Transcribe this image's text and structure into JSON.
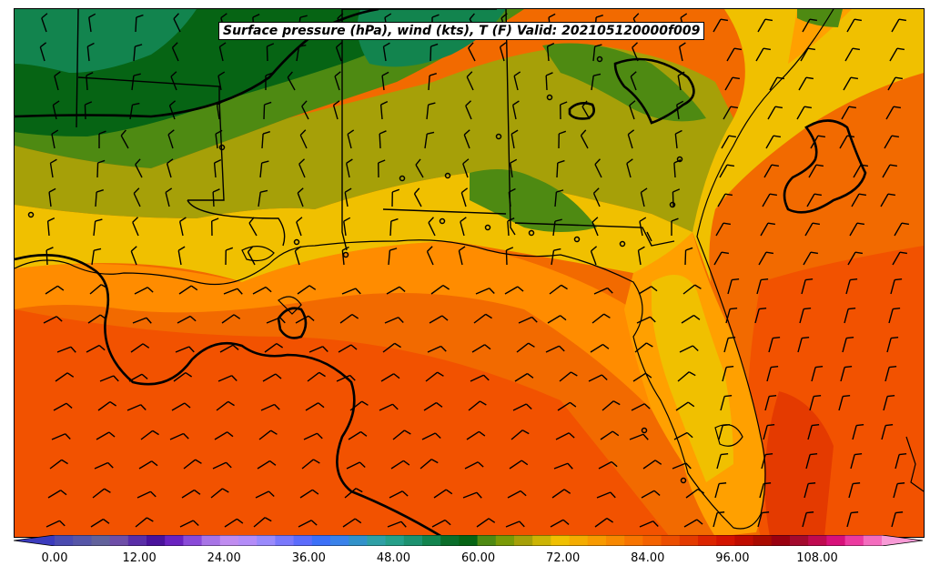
{
  "title": "Surface pressure (hPa), wind (kts), T (F) Valid: 202105120000f009",
  "colorbar": {
    "tick_labels": [
      "0.00",
      "12.00",
      "24.00",
      "36.00",
      "48.00",
      "60.00",
      "72.00",
      "84.00",
      "96.00",
      "108.00"
    ],
    "min": -6,
    "max": 123,
    "step": 3,
    "colors": [
      "#3b3bbd",
      "#4b4bb0",
      "#5656a8",
      "#62629c",
      "#6e4ea8",
      "#5a2ea8",
      "#4a129c",
      "#6a22c0",
      "#8a4ad8",
      "#a874e6",
      "#c08cf0",
      "#b48cf8",
      "#9a8afc",
      "#7a78fc",
      "#5c6cfc",
      "#3c70f8",
      "#3a82ea",
      "#3292ca",
      "#2fa0a6",
      "#26a08a",
      "#1d9270",
      "#12844e",
      "#0a6e2a",
      "#066414",
      "#4e8a12",
      "#7a9a06",
      "#a6a008",
      "#ccb404",
      "#f0c000",
      "#f4ac00",
      "#f89a00",
      "#f88800",
      "#f87400",
      "#f46200",
      "#ec4e00",
      "#e43a00",
      "#dc2400",
      "#d41400",
      "#c00c00",
      "#aa0a00",
      "#9a0010",
      "#a40a2e",
      "#c00a50",
      "#d8107a",
      "#ec3aa0",
      "#f46cbe",
      "#f89ad6"
    ]
  },
  "map": {
    "fill_colors": {
      "gulf": "#f26a00",
      "gulf_deep": "#f25200",
      "coastal_warm": "#ff8c00",
      "warm_land": "#ffa000",
      "lowland": "#f0c000",
      "olive": "#a6a008",
      "green_light": "#4e8a12",
      "green": "#066414",
      "green_dark": "#12844e",
      "atlantic_warm": "#e43a00"
    },
    "isobar_color": "#000000",
    "barb_color": "#000000"
  }
}
